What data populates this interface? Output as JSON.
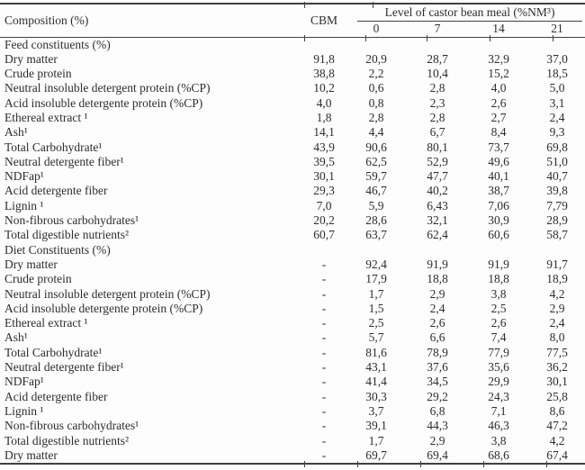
{
  "colors": {
    "text": "#2d2d2d",
    "rules": "#414141",
    "background": "#fdfdfd"
  },
  "table": {
    "title_column": "Composition (%)",
    "cbm_column": "CBM",
    "group_header": "Level of castor bean meal (%NM³)",
    "level_columns": [
      "0",
      "7",
      "14",
      "21"
    ],
    "sections": [
      {
        "title": "Feed constituents (%)",
        "rows": [
          {
            "label": "Dry matter",
            "cbm": "91,8",
            "values": [
              "20,9",
              "28,7",
              "32,9",
              "37,0"
            ]
          },
          {
            "label": "Crude protein",
            "cbm": "38,8",
            "values": [
              "2,2",
              "10,4",
              "15,2",
              "18,5"
            ]
          },
          {
            "label": "Neutral insoluble detergent protein (%CP)",
            "cbm": "10,2",
            "values": [
              "0,6",
              "2,8",
              "4,0",
              "5,0"
            ]
          },
          {
            "label": "Acid insoluble detergente protein (%CP)",
            "cbm": "4,0",
            "values": [
              "0,8",
              "2,3",
              "2,6",
              "3,1"
            ]
          },
          {
            "label": "Ethereal extract ¹",
            "cbm": "1,8",
            "values": [
              "2,8",
              "2,8",
              "2,7",
              "2,4"
            ]
          },
          {
            "label": "Ash¹",
            "cbm": "14,1",
            "values": [
              "4,4",
              "6,7",
              "8,4",
              "9,3"
            ]
          },
          {
            "label": "Total Carbohydrate¹",
            "cbm": "43,9",
            "values": [
              "90,6",
              "80,1",
              "73,7",
              "69,8"
            ]
          },
          {
            "label": "Neutral detergente fiber¹",
            "cbm": "39,5",
            "values": [
              "62,5",
              "52,9",
              "49,6",
              "51,0"
            ]
          },
          {
            "label": "NDFap¹",
            "cbm": "30,1",
            "values": [
              "59,7",
              "47,7",
              "40,1",
              "40,7"
            ]
          },
          {
            "label": "Acid detergente fiber",
            "cbm": "29,3",
            "values": [
              "46,7",
              "40,2",
              "38,7",
              "39,8"
            ]
          },
          {
            "label": "Lignin ¹",
            "cbm": "7,0",
            "values": [
              "5,9",
              "6,43",
              "7,06",
              "7,79"
            ]
          },
          {
            "label": "Non-fibrous carbohydrates¹",
            "cbm": "20,2",
            "values": [
              "28,6",
              "32,1",
              "30,9",
              "28,9"
            ]
          },
          {
            "label": "Total digestible nutrients²",
            "cbm": "60,7",
            "values": [
              "63,7",
              "62,4",
              "60,6",
              "58,7"
            ]
          }
        ]
      },
      {
        "title": "Diet Constituents (%)",
        "rows": [
          {
            "label": "Dry matter",
            "cbm": "-",
            "values": [
              "92,4",
              "91,9",
              "91,9",
              "91,7"
            ]
          },
          {
            "label": "Crude protein",
            "cbm": "-",
            "values": [
              "17,9",
              "18,8",
              "18,8",
              "18,9"
            ]
          },
          {
            "label": "Neutral insoluble detergent protein (%CP)",
            "cbm": "-",
            "values": [
              "1,7",
              "2,9",
              "3,8",
              "4,2"
            ]
          },
          {
            "label": "Acid insoluble detergente protein (%CP)",
            "cbm": "-",
            "values": [
              "1,5",
              "2,4",
              "2,5",
              "2,9"
            ]
          },
          {
            "label": "Ethereal extract ¹",
            "cbm": "-",
            "values": [
              "2,5",
              "2,6",
              "2,6",
              "2,4"
            ]
          },
          {
            "label": "Ash¹",
            "cbm": "-",
            "values": [
              "5,7",
              "6,6",
              "7,4",
              "8,0"
            ]
          },
          {
            "label": "Total Carbohydrate¹",
            "cbm": "-",
            "values": [
              "81,6",
              "78,9",
              "77,9",
              "77,5"
            ]
          },
          {
            "label": "Neutral detergente fiber¹",
            "cbm": "-",
            "values": [
              "43,1",
              "37,6",
              "35,6",
              "36,2"
            ]
          },
          {
            "label": "NDFap¹",
            "cbm": "-",
            "values": [
              "41,4",
              "34,5",
              "29,9",
              "30,1"
            ]
          },
          {
            "label": "Acid detergente fiber",
            "cbm": "-",
            "values": [
              "30,3",
              "29,2",
              "24,3",
              "25,8"
            ]
          },
          {
            "label": "Lignin ¹",
            "cbm": "-",
            "values": [
              "3,7",
              "6,8",
              "7,1",
              "8,6"
            ]
          },
          {
            "label": "Non-fibrous carbohydrates¹",
            "cbm": "-",
            "values": [
              "39,1",
              "44,3",
              "46,3",
              "47,2"
            ]
          },
          {
            "label": "Total digestible nutrients²",
            "cbm": "-",
            "values": [
              "1,7",
              "2,9",
              "3,8",
              "4,2"
            ]
          },
          {
            "label": "Dry matter",
            "cbm": "-",
            "values": [
              "69,7",
              "69,4",
              "68,6",
              "67,4"
            ]
          }
        ]
      }
    ]
  }
}
